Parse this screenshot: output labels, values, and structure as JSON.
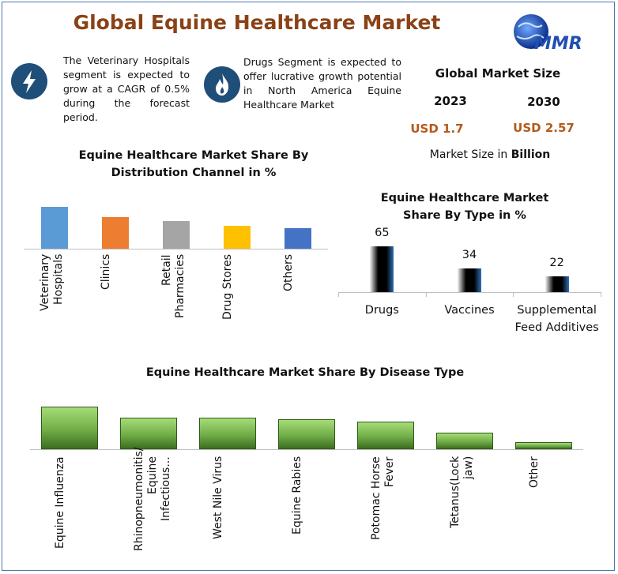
{
  "header": {
    "title": "Global Equine Healthcare Market",
    "logo": "MMR"
  },
  "callouts": [
    {
      "text": "The Veterinary Hospitals segment is expected to grow at a CAGR of 0.5% during the forecast period."
    },
    {
      "text": "Drugs Segment is expected to offer lucrative growth potential in North America Equine Healthcare Market"
    }
  ],
  "market_size": {
    "title": "Global Market Size",
    "years": [
      "2023",
      "2030"
    ],
    "values": [
      "USD 1.7",
      "USD 2.57"
    ],
    "note": "Market Size in",
    "unit": "Billion"
  },
  "chart_data": [
    {
      "type": "bar",
      "title": "Equine Healthcare Market Share By Distribution Channel in %",
      "categories": [
        "Veterinary Hospitals",
        "Clinics",
        "Retail Pharmacies",
        "Drug Stores",
        "Others"
      ],
      "values": [
        29,
        22,
        19,
        16,
        14
      ],
      "colors": [
        "#5b9bd5",
        "#ed7d31",
        "#a5a5a5",
        "#ffc000",
        "#4472c4"
      ]
    },
    {
      "type": "bar",
      "title": "Equine Healthcare Market Share By Type in %",
      "categories": [
        "Drugs",
        "Vaccines",
        "Supplemental Feed Additives"
      ],
      "values": [
        65,
        34,
        22
      ],
      "color": "#2f6fb5",
      "value_labels_shown": true
    },
    {
      "type": "bar",
      "title": "Equine Healthcare Market Share By Disease Type",
      "categories": [
        "Equine Influenza",
        "Rhinopneumonitis/ Equine Infectious...",
        "West Nile Virus",
        "Equine Rabies",
        "Potomac Horse Fever",
        "Tetanus(Lock jaw)",
        "Other"
      ],
      "values": [
        23,
        17,
        17,
        16,
        15,
        9,
        4
      ],
      "color": "#70ad47"
    }
  ]
}
